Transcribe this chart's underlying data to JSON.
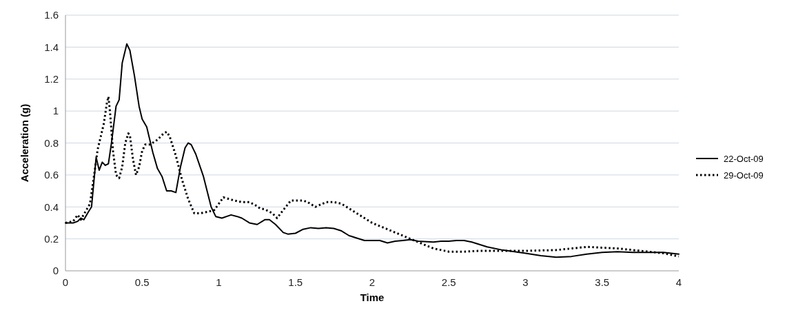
{
  "chart_data": {
    "type": "line",
    "xlabel": "Time",
    "ylabel": "Acceleration (g)",
    "xlim": [
      0,
      4
    ],
    "xticks": [
      0,
      0.5,
      1,
      1.5,
      2,
      2.5,
      3,
      3.5,
      4
    ],
    "ylim": [
      0,
      1.6
    ],
    "yticks": [
      0,
      0.2,
      0.4,
      0.6,
      0.8,
      1,
      1.2,
      1.4,
      1.6
    ],
    "grid": "y",
    "legend": "right",
    "series": [
      {
        "name": "22-Oct-09",
        "color": "#000000",
        "line_style": "solid",
        "x": [
          0,
          0.05,
          0.08,
          0.1,
          0.12,
          0.15,
          0.17,
          0.2,
          0.22,
          0.24,
          0.26,
          0.28,
          0.3,
          0.33,
          0.35,
          0.37,
          0.4,
          0.42,
          0.45,
          0.48,
          0.5,
          0.53,
          0.57,
          0.6,
          0.63,
          0.66,
          0.69,
          0.72,
          0.75,
          0.78,
          0.8,
          0.82,
          0.85,
          0.9,
          0.95,
          0.98,
          1.02,
          1.08,
          1.12,
          1.15,
          1.2,
          1.25,
          1.3,
          1.33,
          1.37,
          1.42,
          1.45,
          1.5,
          1.55,
          1.6,
          1.65,
          1.7,
          1.75,
          1.8,
          1.85,
          1.9,
          1.95,
          2,
          2.05,
          2.1,
          2.15,
          2.2,
          2.25,
          2.3,
          2.4,
          2.45,
          2.5,
          2.55,
          2.6,
          2.65,
          2.75,
          2.85,
          3,
          3.1,
          3.2,
          3.3,
          3.4,
          3.5,
          3.6,
          3.7,
          3.8,
          3.9,
          4
        ],
        "values": [
          0.3,
          0.3,
          0.31,
          0.33,
          0.32,
          0.37,
          0.4,
          0.71,
          0.63,
          0.68,
          0.66,
          0.67,
          0.8,
          1.03,
          1.07,
          1.3,
          1.42,
          1.38,
          1.22,
          1.03,
          0.95,
          0.9,
          0.74,
          0.64,
          0.59,
          0.5,
          0.5,
          0.49,
          0.65,
          0.77,
          0.8,
          0.79,
          0.73,
          0.59,
          0.4,
          0.34,
          0.33,
          0.35,
          0.34,
          0.33,
          0.3,
          0.29,
          0.32,
          0.32,
          0.29,
          0.24,
          0.23,
          0.235,
          0.26,
          0.27,
          0.265,
          0.27,
          0.265,
          0.25,
          0.22,
          0.205,
          0.19,
          0.19,
          0.19,
          0.175,
          0.185,
          0.19,
          0.195,
          0.185,
          0.18,
          0.185,
          0.185,
          0.19,
          0.19,
          0.18,
          0.15,
          0.13,
          0.11,
          0.095,
          0.085,
          0.09,
          0.105,
          0.115,
          0.12,
          0.115,
          0.115,
          0.115,
          0.105
        ]
      },
      {
        "name": "29-Oct-09",
        "color": "#000000",
        "line_style": "dotted",
        "x": [
          0,
          0.05,
          0.08,
          0.1,
          0.13,
          0.16,
          0.19,
          0.21,
          0.23,
          0.25,
          0.27,
          0.28,
          0.29,
          0.31,
          0.33,
          0.35,
          0.37,
          0.39,
          0.41,
          0.42,
          0.44,
          0.46,
          0.48,
          0.5,
          0.52,
          0.55,
          0.6,
          0.64,
          0.66,
          0.68,
          0.72,
          0.76,
          0.8,
          0.84,
          0.88,
          0.93,
          0.97,
          1,
          1.03,
          1.1,
          1.15,
          1.2,
          1.24,
          1.27,
          1.3,
          1.35,
          1.38,
          1.42,
          1.47,
          1.55,
          1.58,
          1.63,
          1.7,
          1.75,
          1.8,
          1.85,
          1.9,
          2,
          2.1,
          2.2,
          2.3,
          2.4,
          2.5,
          2.6,
          2.7,
          2.8,
          2.9,
          3,
          3.2,
          3.3,
          3.4,
          3.5,
          3.6,
          3.7,
          3.8,
          3.9,
          4
        ],
        "values": [
          0.3,
          0.31,
          0.35,
          0.32,
          0.37,
          0.42,
          0.62,
          0.76,
          0.84,
          0.92,
          1.05,
          1.09,
          1,
          0.75,
          0.6,
          0.58,
          0.65,
          0.8,
          0.86,
          0.85,
          0.7,
          0.6,
          0.65,
          0.75,
          0.79,
          0.79,
          0.82,
          0.86,
          0.87,
          0.84,
          0.72,
          0.57,
          0.45,
          0.36,
          0.36,
          0.37,
          0.38,
          0.42,
          0.46,
          0.44,
          0.43,
          0.43,
          0.41,
          0.39,
          0.385,
          0.36,
          0.33,
          0.38,
          0.44,
          0.44,
          0.43,
          0.4,
          0.43,
          0.43,
          0.42,
          0.39,
          0.36,
          0.3,
          0.26,
          0.22,
          0.18,
          0.14,
          0.12,
          0.12,
          0.125,
          0.125,
          0.125,
          0.125,
          0.13,
          0.14,
          0.15,
          0.145,
          0.14,
          0.13,
          0.12,
          0.11,
          0.09
        ]
      }
    ]
  }
}
